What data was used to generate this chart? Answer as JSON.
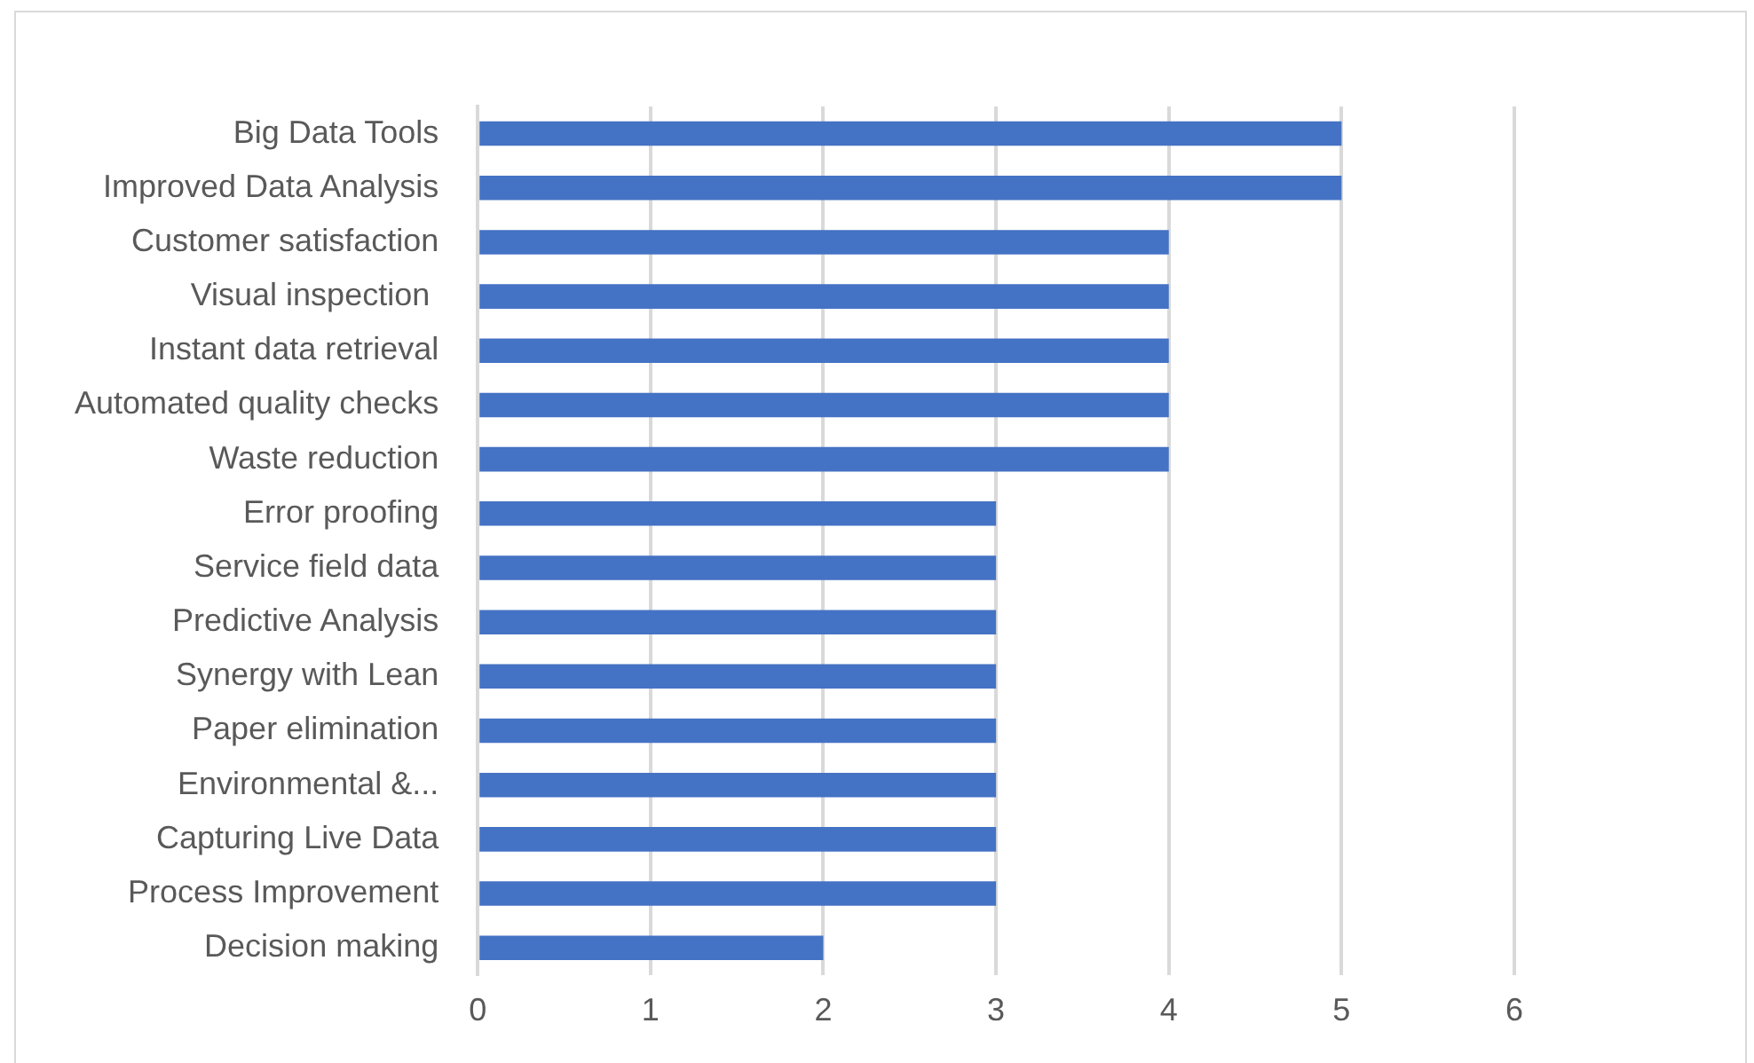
{
  "chart_data": {
    "type": "bar",
    "orientation": "horizontal",
    "categories": [
      "Big Data Tools",
      "Improved Data Analysis",
      "Customer satisfaction",
      "Visual inspection ",
      "Instant data retrieval",
      "Automated quality checks",
      "Waste reduction",
      "Error proofing",
      "Service field data",
      "Predictive Analysis",
      "Synergy with Lean",
      "Paper elimination",
      "Environmental &...",
      "Capturing Live Data",
      "Process Improvement",
      "Decision making"
    ],
    "values": [
      5,
      5,
      4,
      4,
      4,
      4,
      4,
      3,
      3,
      3,
      3,
      3,
      3,
      3,
      3,
      2
    ],
    "color": "#4472c4",
    "xlim": [
      0,
      6
    ],
    "xticks": [
      0,
      1,
      2,
      3,
      4,
      5,
      6
    ],
    "grid": "x",
    "legend": false
  }
}
